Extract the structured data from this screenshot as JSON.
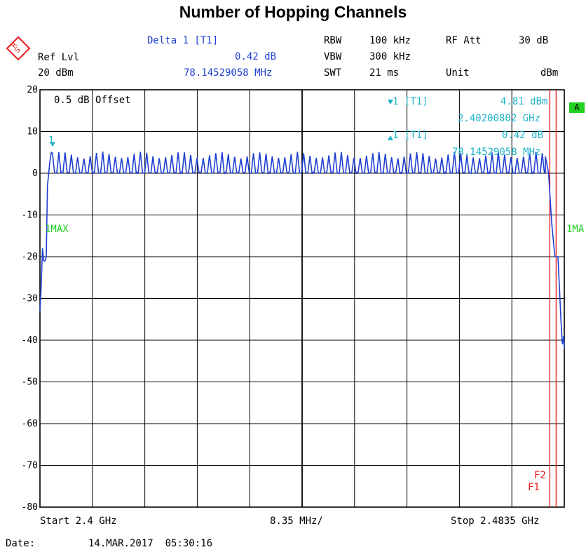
{
  "title": "Number of Hopping Channels",
  "header": {
    "delta": "Delta 1 [T1]",
    "delta_db": "0.42 dB",
    "delta_freq": "78.14529058 MHz",
    "ref_lvl_label": "Ref Lvl",
    "ref_lvl_value": "20 dBm",
    "rbw_label": "RBW",
    "rbw_value": "100 kHz",
    "vbw_label": "VBW",
    "vbw_value": "300 kHz",
    "swt_label": "SWT",
    "swt_value": "21 ms",
    "rf_att_label": "RF Att",
    "rf_att_value": "30 dB",
    "unit_label": "Unit",
    "unit_value": "dBm"
  },
  "plot": {
    "offset_label": "0.5 dB Offset",
    "marker1_label": "1 [T1]",
    "marker1_level": "4.81 dBm",
    "marker1_freq": "2.40200802 GHz",
    "delta1_label": "1 [T1]",
    "delta1_level": "0.42 dB",
    "delta1_freq": "78.14529058 MHz",
    "trace_left": "1MAX",
    "trace_right": "1MA",
    "badge": "A",
    "marker_num": "1",
    "f1": "F1",
    "f2": "F2",
    "start": "Start 2.4 GHz",
    "span_div": "8.35 MHz/",
    "stop": "Stop 2.4835 GHz"
  },
  "footer": {
    "date_label": "Date:",
    "date_value": "14.MAR.2017  05:30:16"
  },
  "colors": {
    "trace": "#1f3fd0",
    "marker": "#1fb4c8",
    "lines": "#e81b1b",
    "trace_label": "#21d021"
  },
  "chart_data": {
    "type": "line",
    "title": "Number of Hopping Channels",
    "xlabel": "",
    "ylabel": "",
    "xlim": [
      2.4,
      2.4835
    ],
    "ylim": [
      -80,
      20
    ],
    "y_ticks": [
      20,
      10,
      0,
      -10,
      -20,
      -30,
      -40,
      -50,
      -60,
      -70,
      -80
    ],
    "x_unit": "GHz",
    "y_unit": "dBm",
    "grid": true,
    "channel_count": 79,
    "channel_peak_dbm": 5,
    "channel_trough_dbm": 0,
    "first_channel_ghz": 2.402,
    "last_channel_ghz": 2.48,
    "markers": [
      {
        "name": "1 [T1]",
        "x_ghz": 2.40200802,
        "y_dbm": 4.81
      },
      {
        "name": "Delta 1 [T1]",
        "delta_mhz": 78.14529058,
        "delta_db": 0.42
      }
    ],
    "vertical_lines": [
      {
        "name": "F1",
        "x_ghz": 2.4812
      },
      {
        "name": "F2",
        "x_ghz": 2.4822
      }
    ],
    "series": [
      {
        "x": [
          2.4,
          2.4002,
          2.4004,
          2.4006,
          2.4008,
          2.401,
          2.4012,
          2.4014,
          2.4016,
          2.4018,
          2.402
        ],
        "values": [
          -33,
          -27,
          -18,
          -21,
          -21,
          -20,
          -3,
          0,
          3,
          5,
          4.8
        ]
      },
      {
        "x": [
          2.4805,
          2.481,
          2.4815,
          2.482,
          2.4825,
          2.483,
          2.4832,
          2.4834,
          2.4835
        ],
        "values": [
          4,
          0,
          -12,
          -20,
          -20,
          -36,
          -41,
          -39,
          -42
        ]
      }
    ]
  }
}
